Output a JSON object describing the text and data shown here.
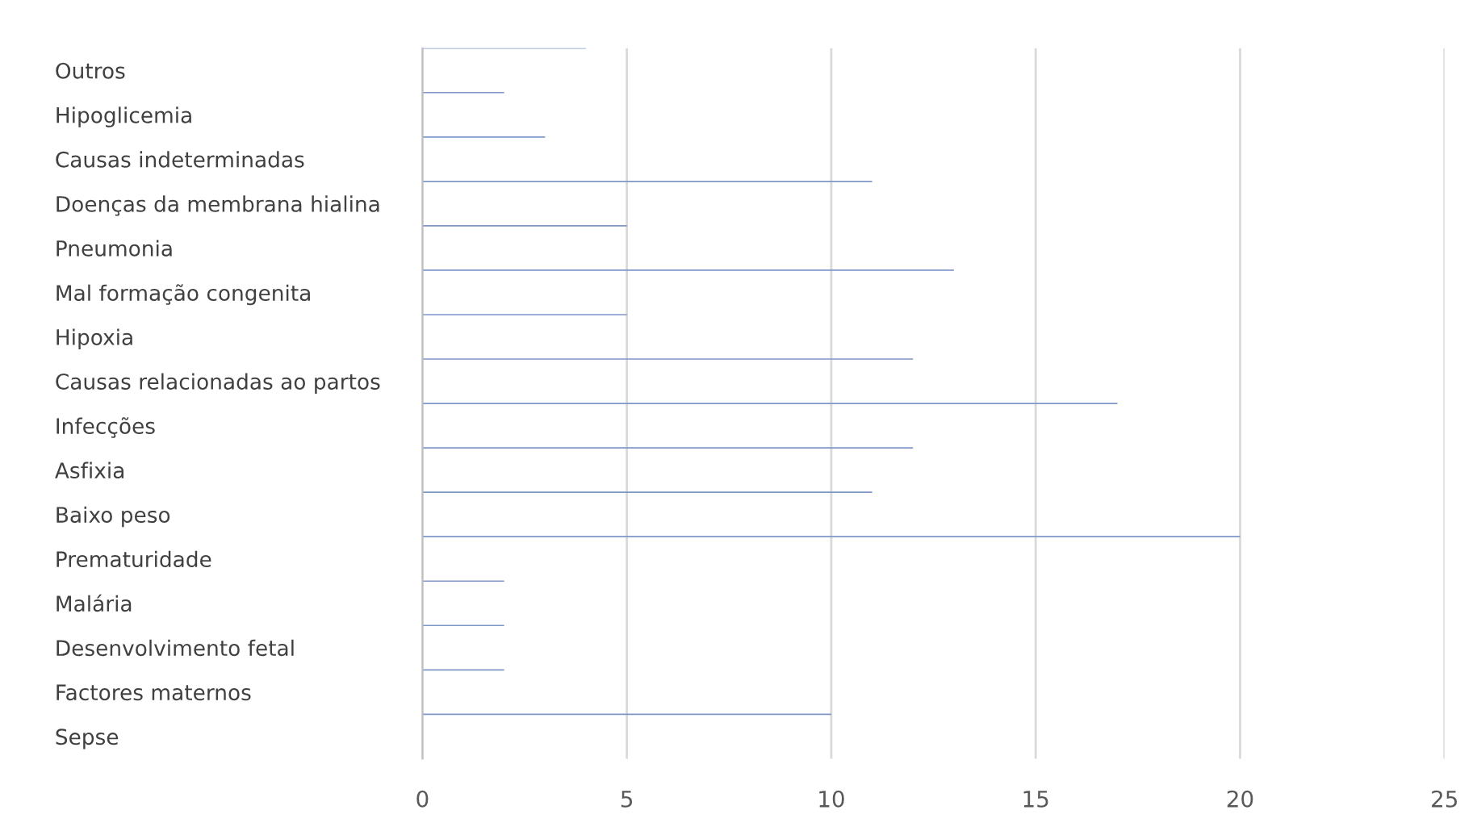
{
  "chart_data": {
    "type": "bar",
    "orientation": "horizontal",
    "categories": [
      "Outros",
      "Hipoglicemia",
      "Causas indeterminadas",
      "Doenças da membrana hialina",
      "Pneumonia",
      "Mal formação congenita",
      "Hipoxia",
      "Causas relacionadas ao partos",
      "Infecções",
      "Asfixia",
      "Baixo peso",
      "Prematuridade",
      "Malária",
      "Desenvolvimento fetal",
      "Factores maternos",
      "Sepse"
    ],
    "values": [
      4,
      2,
      3,
      11,
      5,
      13,
      5,
      12,
      17,
      12,
      11,
      20,
      2,
      2,
      2,
      10
    ],
    "color": "#7f96c8",
    "xlim": [
      0,
      25
    ],
    "xticks": [
      0,
      5,
      10,
      15,
      20,
      25
    ],
    "grid": "x"
  }
}
